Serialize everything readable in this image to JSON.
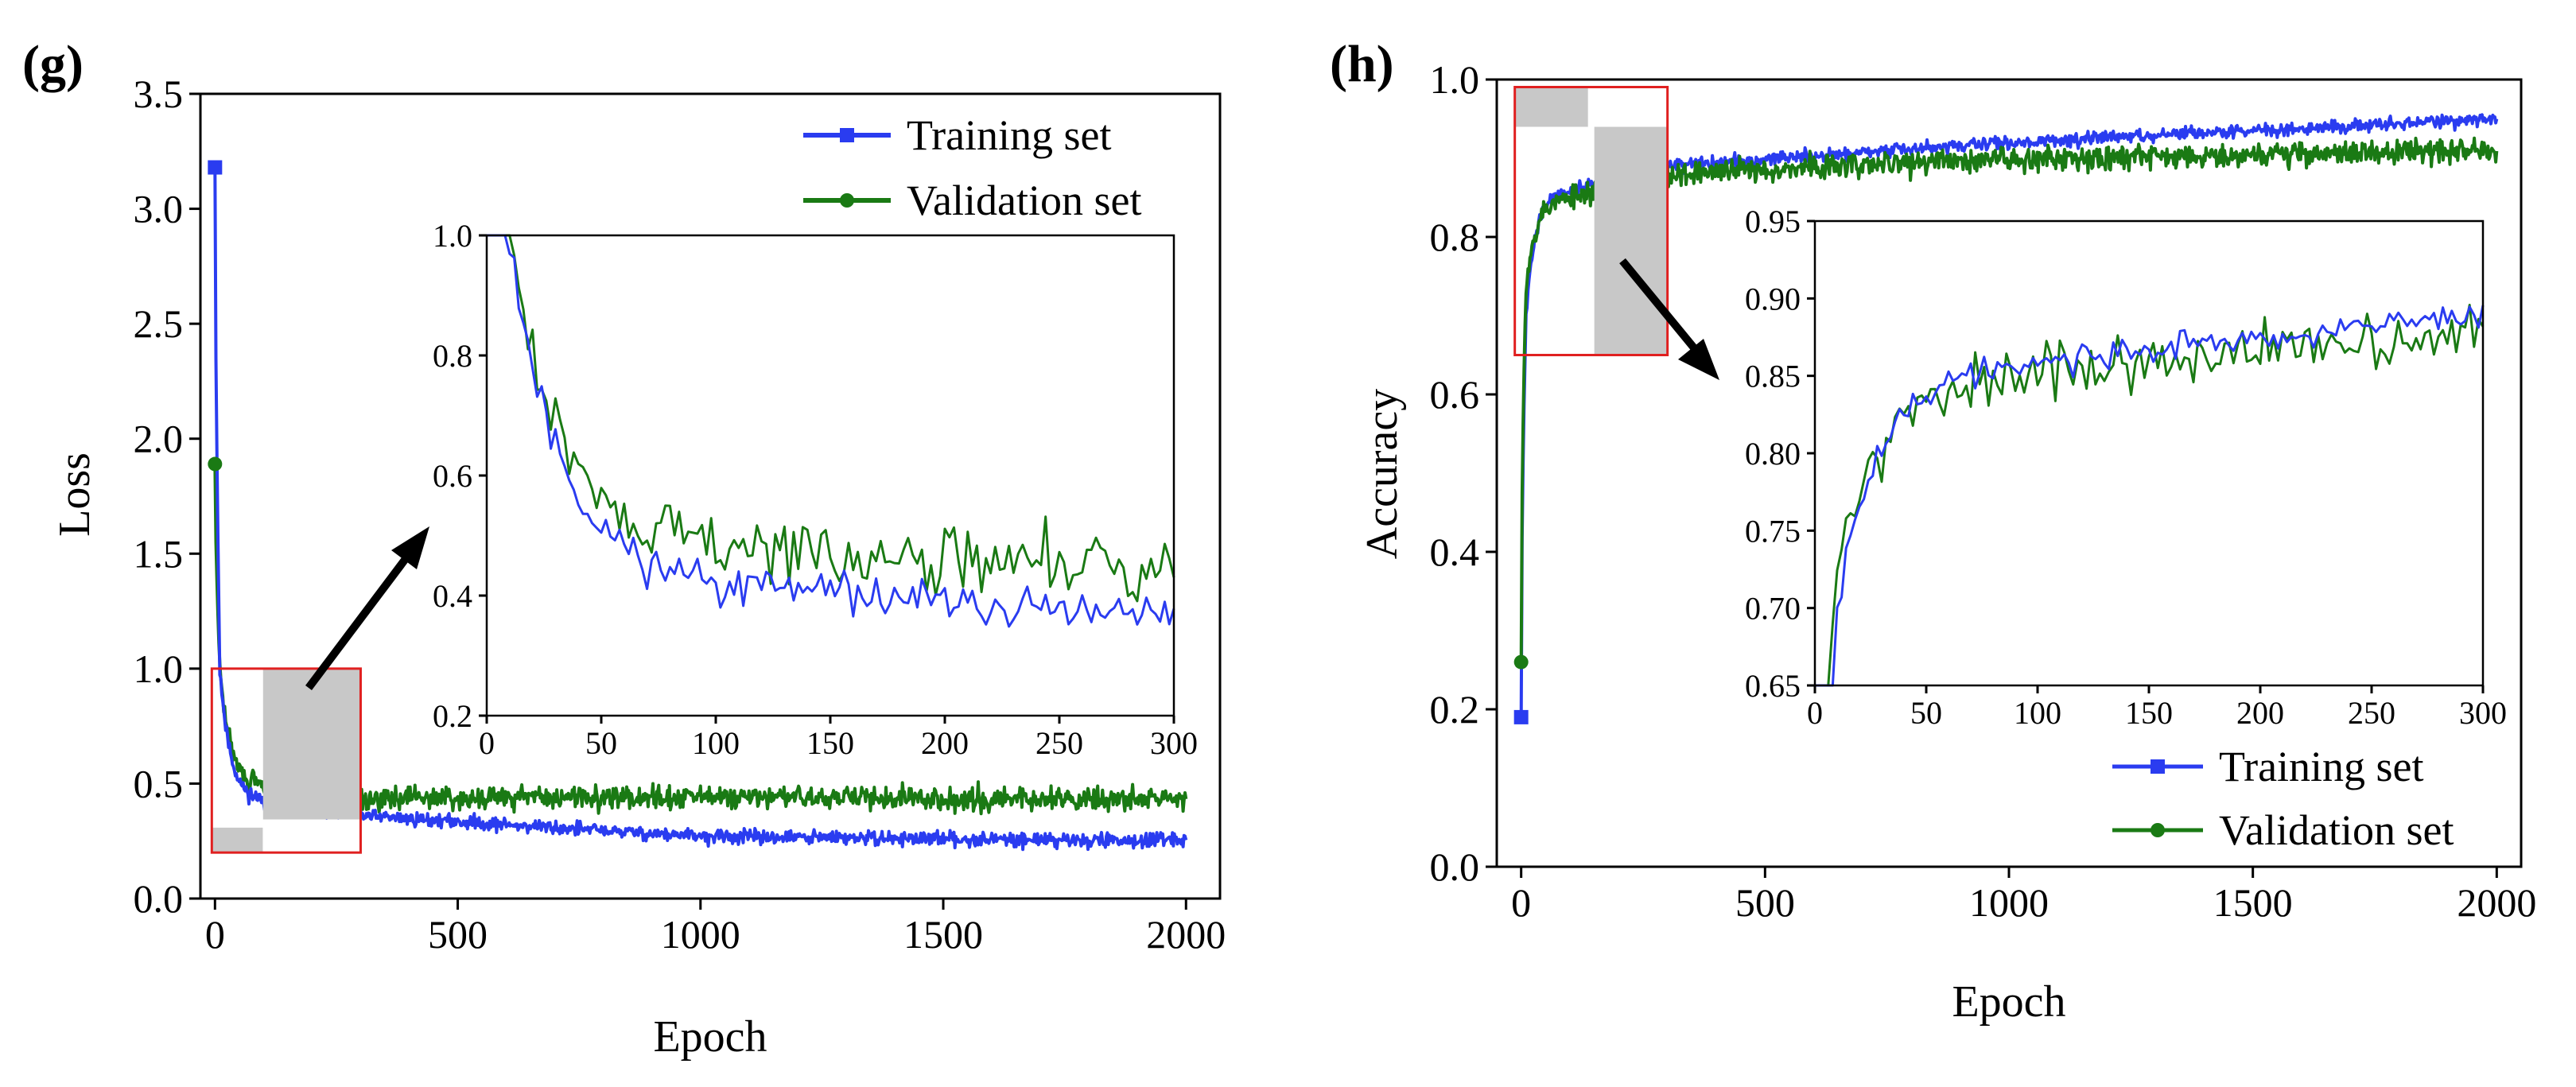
{
  "figure": {
    "panels": [
      {
        "label": "(g)",
        "description": "Loss vs Epoch"
      },
      {
        "label": "(h)",
        "description": "Accuracy vs Epoch"
      }
    ]
  },
  "colors": {
    "training": "#2a3cf0",
    "validation": "#1a7a14",
    "zoom_box": "#e02020",
    "zoom_fill": "#c8c8c8",
    "arrow": "#000000"
  },
  "chart_data": [
    {
      "id": "g",
      "type": "line",
      "panel_label": "(g)",
      "title": "",
      "xlabel": "Epoch",
      "ylabel": "Loss",
      "xlim": [
        -30,
        2070
      ],
      "ylim": [
        0.0,
        3.5
      ],
      "xticks": [
        0,
        500,
        1000,
        1500,
        2000
      ],
      "yticks": [
        0.0,
        0.5,
        1.0,
        1.5,
        2.0,
        2.5,
        3.0,
        3.5
      ],
      "ytick_decimals": 1,
      "legend": {
        "position": "top-right",
        "entries": [
          "Training set",
          "Validation set"
        ]
      },
      "series": [
        {
          "name": "Training set",
          "marker": "square",
          "summary": {
            "start": 3.18,
            "epoch_10": 1.0,
            "epoch_100": 0.42,
            "epoch_300": 0.36,
            "epoch_1000": 0.27,
            "epoch_2000": 0.25,
            "noise": 0.03
          }
        },
        {
          "name": "Validation set",
          "marker": "circle",
          "summary": {
            "start": 1.89,
            "epoch_10": 1.0,
            "epoch_100": 0.48,
            "epoch_300": 0.44,
            "epoch_1000": 0.44,
            "epoch_2000": 0.43,
            "noise": 0.05
          }
        }
      ],
      "zoom_region": {
        "x": [
          0,
          300
        ],
        "y": [
          0.2,
          1.0
        ]
      },
      "inset": {
        "xlim": [
          0,
          300
        ],
        "ylim": [
          0.2,
          1.0
        ],
        "xticks": [
          0,
          50,
          100,
          150,
          200,
          250,
          300
        ],
        "yticks": [
          0.2,
          0.4,
          0.6,
          0.8,
          1.0
        ],
        "ytick_decimals": 1
      }
    },
    {
      "id": "h",
      "type": "line",
      "panel_label": "(h)",
      "title": "",
      "xlabel": "Epoch",
      "ylabel": "Accuracy",
      "xlim": [
        -50,
        2050
      ],
      "ylim": [
        0.0,
        1.0
      ],
      "xticks": [
        0,
        500,
        1000,
        1500,
        2000
      ],
      "yticks": [
        0.0,
        0.2,
        0.4,
        0.6,
        0.8,
        1.0
      ],
      "ytick_decimals": 1,
      "legend": {
        "position": "bottom-right",
        "entries": [
          "Training set",
          "Validation set"
        ]
      },
      "series": [
        {
          "name": "Training set",
          "marker": "square",
          "summary": {
            "start": 0.19,
            "epoch_10": 0.7,
            "epoch_100": 0.86,
            "epoch_300": 0.89,
            "epoch_1000": 0.92,
            "epoch_2000": 0.95,
            "noise": 0.008
          }
        },
        {
          "name": "Validation set",
          "marker": "circle",
          "summary": {
            "start": 0.26,
            "epoch_10": 0.74,
            "epoch_100": 0.85,
            "epoch_300": 0.88,
            "epoch_1000": 0.9,
            "epoch_2000": 0.91,
            "noise": 0.015
          }
        }
      ],
      "zoom_region": {
        "x": [
          0,
          300
        ],
        "y": [
          0.65,
          0.95
        ]
      },
      "inset": {
        "xlim": [
          0,
          300
        ],
        "ylim": [
          0.65,
          0.95
        ],
        "xticks": [
          0,
          50,
          100,
          150,
          200,
          250,
          300
        ],
        "yticks": [
          0.65,
          0.7,
          0.75,
          0.8,
          0.85,
          0.9,
          0.95
        ],
        "ytick_decimals": 2
      }
    }
  ]
}
